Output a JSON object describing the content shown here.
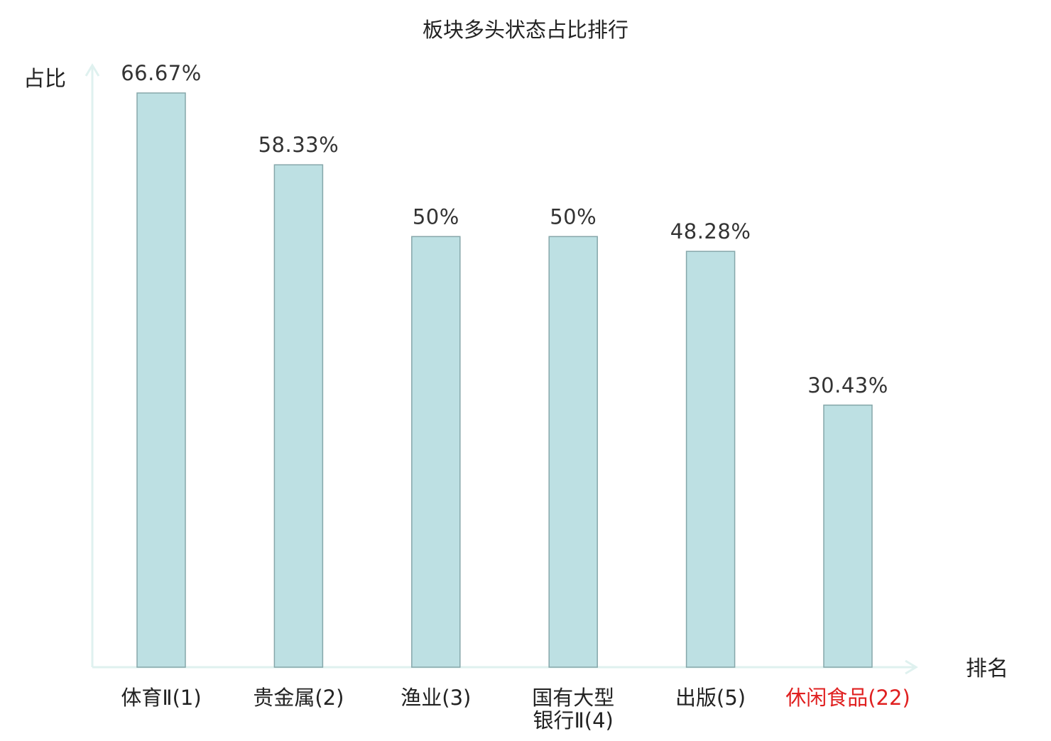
{
  "chart_data": {
    "type": "bar",
    "title": "板块多头状态占比排行",
    "ylabel": "占比",
    "xlabel": "排名",
    "categories": [
      {
        "name": "体育Ⅱ",
        "rank": "(1)",
        "lines": [
          "体育Ⅱ(1)"
        ],
        "highlight": false
      },
      {
        "name": "贵金属",
        "rank": "(2)",
        "lines": [
          "贵金属(2)"
        ],
        "highlight": false
      },
      {
        "name": "渔业",
        "rank": "(3)",
        "lines": [
          "渔业(3)"
        ],
        "highlight": false
      },
      {
        "name": "国有大型银行Ⅱ",
        "rank": "(4)",
        "lines": [
          "国有大型",
          "银行Ⅱ(4)"
        ],
        "highlight": false
      },
      {
        "name": "出版",
        "rank": "(5)",
        "lines": [
          "出版(5)"
        ],
        "highlight": false
      },
      {
        "name": "休闲食品",
        "rank": "(22)",
        "lines": [
          "休闲食品(22)"
        ],
        "highlight": true
      }
    ],
    "values": [
      66.67,
      58.33,
      50,
      50,
      48.28,
      30.43
    ],
    "value_labels": [
      "66.67%",
      "58.33%",
      "50%",
      "50%",
      "48.28%",
      "30.43%"
    ],
    "ylim": [
      0,
      70
    ],
    "grid": false,
    "colors": {
      "bar_fill": "#bde0e3",
      "bar_stroke": "#86a7aa",
      "axis": "#dff1ef",
      "text": "#333333",
      "label": "#222222",
      "highlight": "#e02020"
    }
  }
}
